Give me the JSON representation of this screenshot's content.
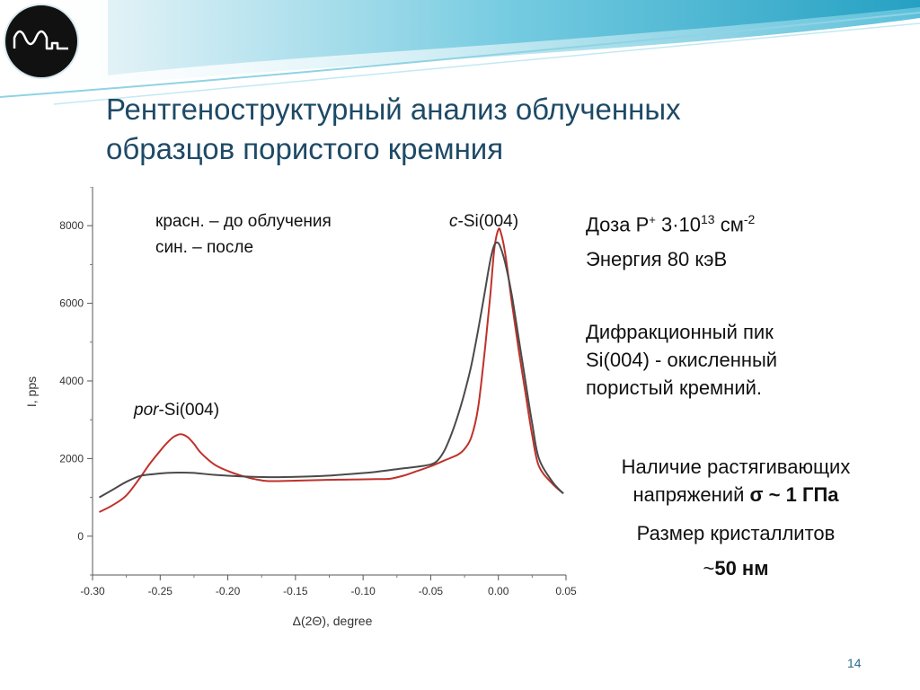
{
  "slide": {
    "title_lines": [
      "Рентгеноструктурный анализ облученных",
      "образцов пористого кремния"
    ],
    "page_number": "14"
  },
  "colors": {
    "title": "#1e4a67",
    "series_before": "#c0312b",
    "series_after": "#4a4a4a",
    "header_teal": "#27a6c6"
  },
  "icons": {
    "logo": "sine-wave-logo-icon"
  },
  "info": {
    "dose_prefix": "Доза P",
    "dose_ion_sup": "+",
    "dose_value": " 3·10",
    "dose_exp_sup": "13",
    "dose_unit": " см",
    "dose_unit_sup": "-2",
    "energy": "Энергия 80 кэВ",
    "peak_lines": [
      "Дифракционный пик",
      "Si(004)  - окисленный",
      "пористый кремний."
    ],
    "stress_line1": "Наличие растягивающих",
    "stress_prefix": "напряжений ",
    "stress_value": "σ ~ 1 ГПа",
    "crystallite_label": "Размер кристаллитов",
    "crystallite_tilde": "~",
    "crystallite_value": "50 нм"
  },
  "chart_data": {
    "type": "line",
    "xlabel": "Δ(2Θ), degree",
    "ylabel": "I, pps",
    "xlim": [
      -0.3,
      0.05
    ],
    "ylim": [
      -1000,
      9000
    ],
    "xticks": [
      -0.3,
      -0.25,
      -0.2,
      -0.15,
      -0.1,
      -0.05,
      0.0,
      0.05
    ],
    "xtick_labels": [
      "-0.30",
      "-0.25",
      "-0.20",
      "-0.15",
      "-0.10",
      "-0.05",
      "0.00",
      "0.05"
    ],
    "yticks": [
      0,
      2000,
      4000,
      6000,
      8000
    ],
    "ytick_labels": [
      "0",
      "2000",
      "4000",
      "6000",
      "8000"
    ],
    "annotations": {
      "legend_line1": "красн. – до облучения",
      "legend_line2": "син. – после",
      "csi_italic": "c",
      "csi_rest": "-Si(004)",
      "por_italic": "por",
      "por_rest": "-Si(004)"
    },
    "series": [
      {
        "key": "before",
        "x": [
          -0.295,
          -0.285,
          -0.275,
          -0.265,
          -0.258,
          -0.25,
          -0.245,
          -0.24,
          -0.235,
          -0.23,
          -0.225,
          -0.22,
          -0.21,
          -0.2,
          -0.19,
          -0.18,
          -0.17,
          -0.15,
          -0.13,
          -0.11,
          -0.09,
          -0.08,
          -0.07,
          -0.06,
          -0.05,
          -0.04,
          -0.03,
          -0.025,
          -0.02,
          -0.015,
          -0.01,
          -0.006,
          -0.003,
          0.0,
          0.002,
          0.005,
          0.01,
          0.015,
          0.02,
          0.025,
          0.03,
          0.04,
          0.048
        ],
        "y": [
          620,
          800,
          1050,
          1500,
          1850,
          2200,
          2400,
          2560,
          2630,
          2560,
          2380,
          2150,
          1850,
          1680,
          1560,
          1470,
          1420,
          1430,
          1450,
          1460,
          1470,
          1480,
          1560,
          1680,
          1800,
          1950,
          2100,
          2250,
          2550,
          3300,
          4800,
          6200,
          7400,
          7900,
          7800,
          7300,
          6000,
          4800,
          3700,
          2600,
          1800,
          1350,
          1100
        ]
      },
      {
        "key": "after",
        "x": [
          -0.295,
          -0.285,
          -0.275,
          -0.265,
          -0.255,
          -0.245,
          -0.235,
          -0.225,
          -0.21,
          -0.19,
          -0.17,
          -0.15,
          -0.13,
          -0.11,
          -0.09,
          -0.07,
          -0.06,
          -0.05,
          -0.045,
          -0.04,
          -0.035,
          -0.03,
          -0.025,
          -0.02,
          -0.015,
          -0.01,
          -0.006,
          -0.003,
          0.0,
          0.003,
          0.006,
          0.01,
          0.015,
          0.02,
          0.025,
          0.03,
          0.04,
          0.048
        ],
        "y": [
          1000,
          1200,
          1400,
          1550,
          1600,
          1630,
          1640,
          1630,
          1580,
          1540,
          1520,
          1530,
          1550,
          1600,
          1660,
          1750,
          1790,
          1850,
          1950,
          2200,
          2600,
          3100,
          3700,
          4400,
          5300,
          6300,
          7100,
          7500,
          7550,
          7300,
          6900,
          6200,
          5100,
          4000,
          2900,
          2000,
          1400,
          1100
        ]
      }
    ]
  }
}
